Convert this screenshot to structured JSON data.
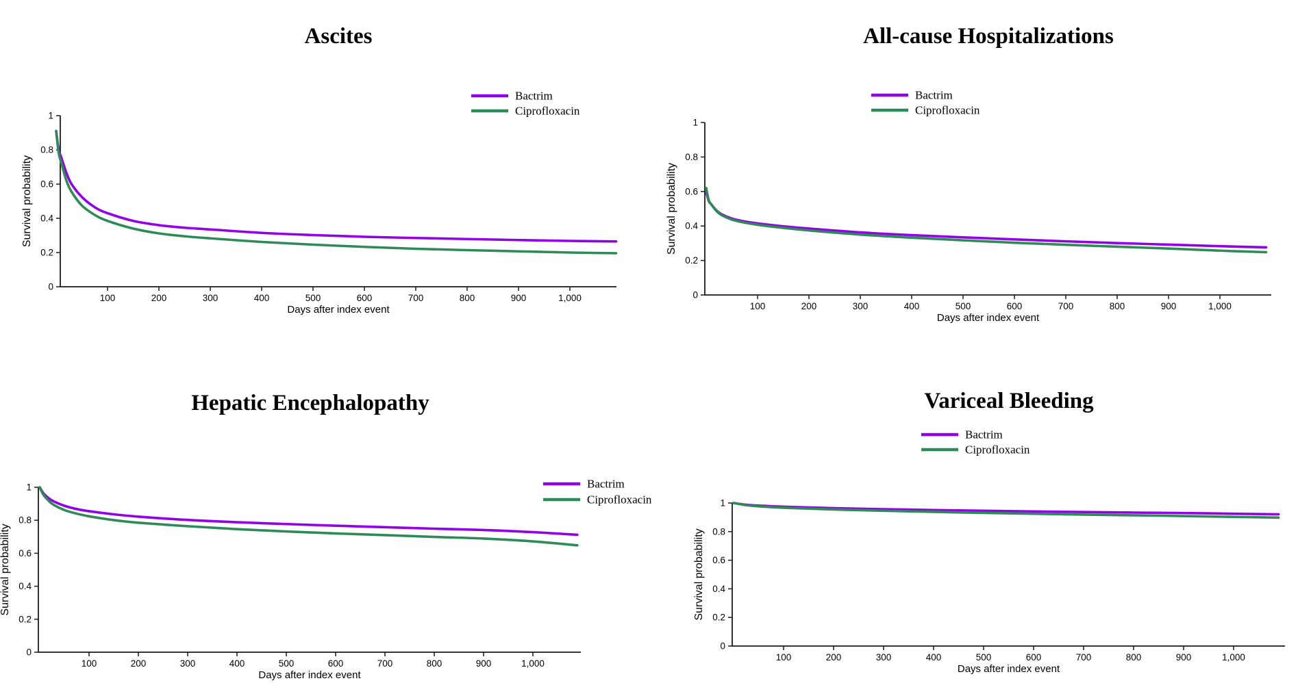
{
  "figure": {
    "description": "Kaplan-Meier survival curves comparing Bactrim and Ciprofloxacin across four outcomes",
    "colors": {
      "bactrim": "#9100E8",
      "ciprofloxacin": "#2E8B57",
      "axis": "#1a1a1a",
      "text": "#000000"
    }
  },
  "chart_data": [
    {
      "type": "line",
      "title": "Ascites",
      "xlabel": "Days after index event",
      "ylabel": "Survival probability",
      "xlim": [
        0,
        1100
      ],
      "ylim": [
        0,
        1
      ],
      "xticks": [
        100,
        200,
        300,
        400,
        500,
        600,
        700,
        800,
        900,
        1000
      ],
      "yticks": [
        0,
        0.2,
        0.4,
        0.6,
        0.8,
        1
      ],
      "grid": false,
      "legend_position": "top-right-above-plot",
      "series": [
        {
          "name": "Bactrim",
          "color": "#9100E8",
          "points": [
            [
              0,
              0.91
            ],
            [
              5,
              0.8
            ],
            [
              10,
              0.755
            ],
            [
              20,
              0.665
            ],
            [
              30,
              0.6
            ],
            [
              50,
              0.525
            ],
            [
              75,
              0.465
            ],
            [
              100,
              0.43
            ],
            [
              150,
              0.385
            ],
            [
              200,
              0.36
            ],
            [
              250,
              0.345
            ],
            [
              300,
              0.335
            ],
            [
              400,
              0.315
            ],
            [
              500,
              0.302
            ],
            [
              600,
              0.292
            ],
            [
              700,
              0.285
            ],
            [
              800,
              0.279
            ],
            [
              900,
              0.273
            ],
            [
              1000,
              0.268
            ],
            [
              1090,
              0.265
            ]
          ]
        },
        {
          "name": "Ciprofloxacin",
          "color": "#2E8B57",
          "points": [
            [
              0,
              0.91
            ],
            [
              5,
              0.78
            ],
            [
              10,
              0.725
            ],
            [
              20,
              0.62
            ],
            [
              30,
              0.555
            ],
            [
              50,
              0.475
            ],
            [
              75,
              0.42
            ],
            [
              100,
              0.385
            ],
            [
              150,
              0.34
            ],
            [
              200,
              0.312
            ],
            [
              250,
              0.295
            ],
            [
              300,
              0.283
            ],
            [
              400,
              0.262
            ],
            [
              500,
              0.246
            ],
            [
              600,
              0.233
            ],
            [
              700,
              0.222
            ],
            [
              800,
              0.214
            ],
            [
              900,
              0.207
            ],
            [
              1000,
              0.2
            ],
            [
              1090,
              0.196
            ]
          ]
        }
      ]
    },
    {
      "type": "line",
      "title": "All-cause Hospitalizations",
      "xlabel": "Days after index event",
      "ylabel": "Survival probability",
      "xlim": [
        0,
        1100
      ],
      "ylim": [
        0,
        1
      ],
      "xticks": [
        100,
        200,
        300,
        400,
        500,
        600,
        700,
        800,
        900,
        1000
      ],
      "yticks": [
        0,
        0.2,
        0.4,
        0.6,
        0.8,
        1
      ],
      "grid": false,
      "legend_position": "top-right-above-plot",
      "series": [
        {
          "name": "Bactrim",
          "color": "#9100E8",
          "points": [
            [
              0,
              0.6
            ],
            [
              5,
              0.545
            ],
            [
              10,
              0.525
            ],
            [
              20,
              0.49
            ],
            [
              30,
              0.468
            ],
            [
              50,
              0.443
            ],
            [
              75,
              0.426
            ],
            [
              100,
              0.415
            ],
            [
              150,
              0.398
            ],
            [
              200,
              0.385
            ],
            [
              300,
              0.363
            ],
            [
              400,
              0.347
            ],
            [
              500,
              0.334
            ],
            [
              600,
              0.322
            ],
            [
              700,
              0.311
            ],
            [
              800,
              0.301
            ],
            [
              900,
              0.292
            ],
            [
              1000,
              0.283
            ],
            [
              1090,
              0.276
            ]
          ]
        },
        {
          "name": "Ciprofloxacin",
          "color": "#2E8B57",
          "points": [
            [
              0,
              0.62
            ],
            [
              5,
              0.55
            ],
            [
              10,
              0.525
            ],
            [
              20,
              0.487
            ],
            [
              30,
              0.463
            ],
            [
              50,
              0.437
            ],
            [
              75,
              0.419
            ],
            [
              100,
              0.407
            ],
            [
              150,
              0.389
            ],
            [
              200,
              0.374
            ],
            [
              300,
              0.35
            ],
            [
              400,
              0.332
            ],
            [
              500,
              0.317
            ],
            [
              600,
              0.303
            ],
            [
              700,
              0.291
            ],
            [
              800,
              0.28
            ],
            [
              900,
              0.269
            ],
            [
              1000,
              0.257
            ],
            [
              1090,
              0.248
            ]
          ]
        }
      ]
    },
    {
      "type": "line",
      "title": "Hepatic Encephalopathy",
      "xlabel": "Days after index event",
      "ylabel": "Survival probability",
      "xlim": [
        0,
        1100
      ],
      "ylim": [
        0,
        1
      ],
      "xticks": [
        100,
        200,
        300,
        400,
        500,
        600,
        700,
        800,
        900,
        1000
      ],
      "yticks": [
        0,
        0.2,
        0.4,
        0.6,
        0.8,
        1
      ],
      "grid": false,
      "legend_position": "top-right-at-plot-top",
      "series": [
        {
          "name": "Bactrim",
          "color": "#9100E8",
          "points": [
            [
              0,
              1.0
            ],
            [
              5,
              0.975
            ],
            [
              10,
              0.955
            ],
            [
              25,
              0.92
            ],
            [
              50,
              0.888
            ],
            [
              75,
              0.868
            ],
            [
              100,
              0.855
            ],
            [
              150,
              0.836
            ],
            [
              200,
              0.822
            ],
            [
              300,
              0.802
            ],
            [
              400,
              0.788
            ],
            [
              500,
              0.777
            ],
            [
              600,
              0.767
            ],
            [
              700,
              0.758
            ],
            [
              800,
              0.749
            ],
            [
              900,
              0.741
            ],
            [
              1000,
              0.728
            ],
            [
              1090,
              0.712
            ]
          ]
        },
        {
          "name": "Ciprofloxacin",
          "color": "#2E8B57",
          "points": [
            [
              0,
              1.0
            ],
            [
              5,
              0.968
            ],
            [
              10,
              0.945
            ],
            [
              25,
              0.9
            ],
            [
              50,
              0.862
            ],
            [
              75,
              0.84
            ],
            [
              100,
              0.824
            ],
            [
              150,
              0.801
            ],
            [
              200,
              0.785
            ],
            [
              300,
              0.764
            ],
            [
              400,
              0.746
            ],
            [
              500,
              0.732
            ],
            [
              600,
              0.72
            ],
            [
              700,
              0.71
            ],
            [
              800,
              0.699
            ],
            [
              900,
              0.689
            ],
            [
              1000,
              0.672
            ],
            [
              1090,
              0.648
            ]
          ]
        }
      ]
    },
    {
      "type": "line",
      "title": "Variceal Bleeding",
      "xlabel": "Days after index event",
      "ylabel": "Survival probability",
      "xlim": [
        0,
        1100
      ],
      "ylim": [
        0,
        1
      ],
      "xticks": [
        100,
        200,
        300,
        400,
        500,
        600,
        700,
        800,
        900,
        1000
      ],
      "yticks": [
        0,
        0.2,
        0.4,
        0.6,
        0.8,
        1
      ],
      "grid": false,
      "legend_position": "top-right-above-plot",
      "series": [
        {
          "name": "Bactrim",
          "color": "#9100E8",
          "points": [
            [
              0,
              1.0
            ],
            [
              25,
              0.988
            ],
            [
              50,
              0.982
            ],
            [
              100,
              0.974
            ],
            [
              200,
              0.964
            ],
            [
              300,
              0.957
            ],
            [
              400,
              0.951
            ],
            [
              500,
              0.946
            ],
            [
              600,
              0.941
            ],
            [
              700,
              0.937
            ],
            [
              800,
              0.933
            ],
            [
              900,
              0.93
            ],
            [
              1000,
              0.925
            ],
            [
              1090,
              0.921
            ]
          ]
        },
        {
          "name": "Ciprofloxacin",
          "color": "#2E8B57",
          "points": [
            [
              0,
              1.0
            ],
            [
              25,
              0.985
            ],
            [
              50,
              0.977
            ],
            [
              100,
              0.967
            ],
            [
              200,
              0.955
            ],
            [
              300,
              0.946
            ],
            [
              400,
              0.938
            ],
            [
              500,
              0.931
            ],
            [
              600,
              0.925
            ],
            [
              700,
              0.919
            ],
            [
              800,
              0.914
            ],
            [
              900,
              0.909
            ],
            [
              1000,
              0.903
            ],
            [
              1090,
              0.898
            ]
          ]
        }
      ]
    }
  ]
}
